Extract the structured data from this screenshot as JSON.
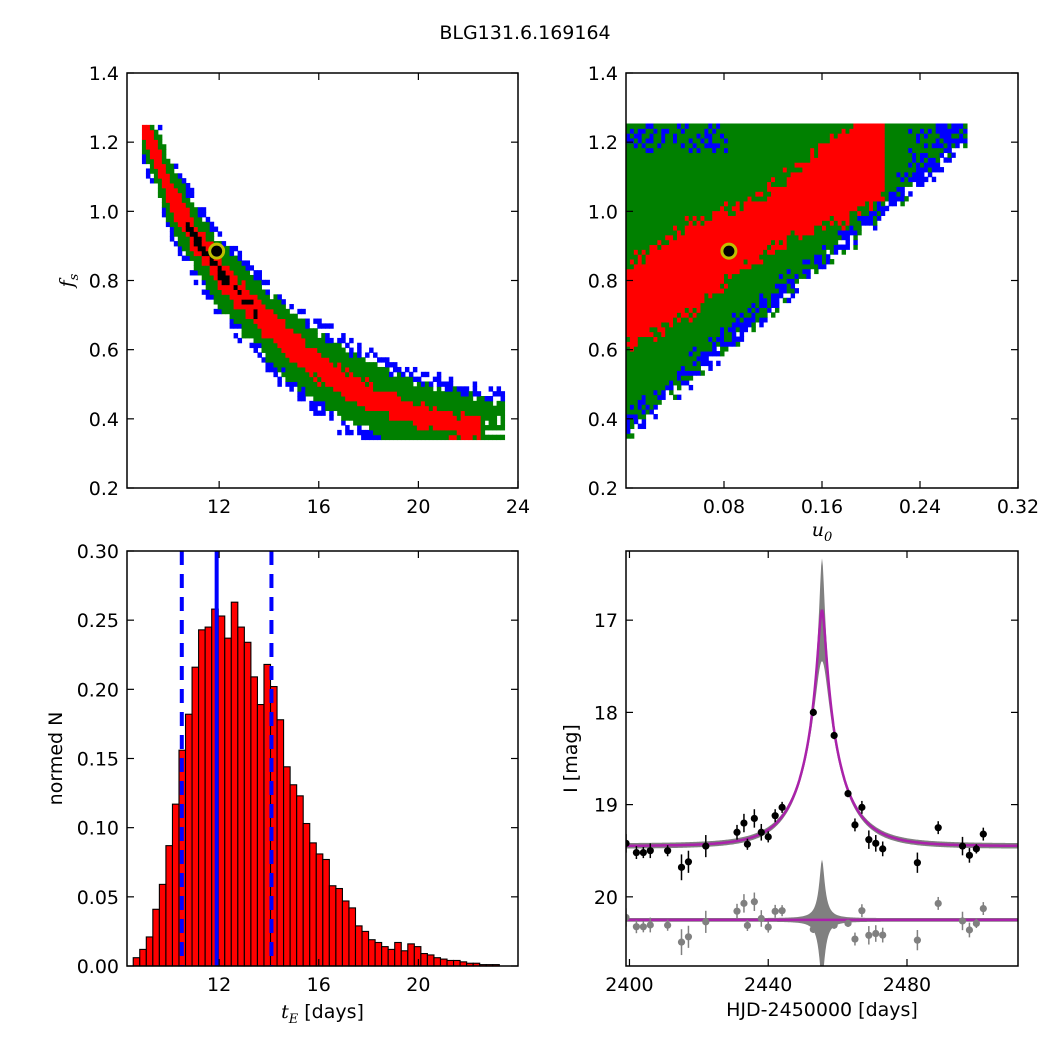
{
  "suptitle": "BLG131.6.169164",
  "colors": {
    "c68": "#ff0000",
    "c95": "#008000",
    "c997": "#0000ff",
    "c1": "#000000",
    "best_fill": "#000000",
    "best_ring": "#bfbf00",
    "model": "#aa22aa",
    "band": "#808080",
    "resid": "#808080",
    "hist": "#ff0000",
    "vline": "#0000ff"
  },
  "chart_data": [
    {
      "id": "fs_vs_tE",
      "type": "heatmap",
      "xlabel": "",
      "ylabel": "f_s",
      "xlim": [
        8.3,
        24
      ],
      "ylim": [
        0.2,
        1.4
      ],
      "xticks": [
        "12",
        "16",
        "20",
        "24"
      ],
      "yticks": [
        "0.2",
        "0.4",
        "0.6",
        "0.8",
        "1.0",
        "1.2",
        "1.4"
      ],
      "best_fit": [
        11.9,
        0.885
      ],
      "ridge": [
        [
          9.0,
          1.24
        ],
        [
          10.0,
          1.05
        ],
        [
          11.0,
          0.92
        ],
        [
          12.0,
          0.82
        ],
        [
          13.0,
          0.74
        ],
        [
          14.0,
          0.665
        ],
        [
          15.0,
          0.6
        ],
        [
          16.0,
          0.545
        ],
        [
          17.0,
          0.5
        ],
        [
          18.0,
          0.46
        ],
        [
          19.0,
          0.43
        ],
        [
          20.0,
          0.405
        ],
        [
          21.0,
          0.385
        ],
        [
          22.0,
          0.37
        ],
        [
          23.0,
          0.355
        ]
      ]
    },
    {
      "id": "fs_vs_u0",
      "type": "heatmap",
      "xlabel": "u_0",
      "ylabel": "",
      "xlim": [
        0.0,
        0.32
      ],
      "ylim": [
        0.2,
        1.4
      ],
      "xticks": [
        "0.08",
        "0.16",
        "0.24",
        "0.32"
      ],
      "yticks": [
        "0.2",
        "0.4",
        "0.6",
        "0.8",
        "1.0",
        "1.2",
        "1.4"
      ],
      "best_fit": [
        0.084,
        0.885
      ]
    },
    {
      "id": "tE_histogram",
      "type": "bar",
      "xlabel": "t_E  [days]",
      "ylabel": "normed N",
      "xlim": [
        8.3,
        24
      ],
      "ylim": [
        0.0,
        0.3
      ],
      "xticks": [
        "12",
        "16",
        "20"
      ],
      "yticks": [
        "0.00",
        "0.05",
        "0.10",
        "0.15",
        "0.20",
        "0.25",
        "0.30"
      ],
      "bin_start": 8.55,
      "bin_width": 0.2625,
      "values": [
        0.006,
        0.012,
        0.021,
        0.041,
        0.059,
        0.087,
        0.117,
        0.156,
        0.182,
        0.216,
        0.243,
        0.245,
        0.258,
        0.253,
        0.237,
        0.263,
        0.245,
        0.234,
        0.209,
        0.189,
        0.218,
        0.202,
        0.178,
        0.144,
        0.131,
        0.123,
        0.103,
        0.089,
        0.081,
        0.077,
        0.058,
        0.056,
        0.047,
        0.042,
        0.029,
        0.025,
        0.019,
        0.017,
        0.014,
        0.012,
        0.017,
        0.011,
        0.016,
        0.014,
        0.009,
        0.008,
        0.006,
        0.005,
        0.004,
        0.004,
        0.003,
        0.002,
        0.002,
        0.001,
        0.001,
        0.001
      ],
      "median": 11.9,
      "lower": 10.5,
      "upper": 14.1
    },
    {
      "id": "light_curve",
      "type": "scatter",
      "xlabel": "HJD-2450000 [days]",
      "ylabel": "I [mag]",
      "xlim": [
        2399,
        2512
      ],
      "ylim": [
        20.75,
        16.25
      ],
      "xticks": [
        "2400",
        "2440",
        "2480"
      ],
      "yticks": [
        "17",
        "18",
        "19",
        "20"
      ],
      "model": {
        "t0": 2455.5,
        "tE": 11.9,
        "u0": 0.084,
        "baseline": 19.45
      },
      "points": [
        [
          2399,
          19.42,
          0.1
        ],
        [
          2402,
          19.52,
          0.07
        ],
        [
          2404,
          19.52,
          0.06
        ],
        [
          2406,
          19.5,
          0.08
        ],
        [
          2411,
          19.5,
          0.06
        ],
        [
          2415,
          19.68,
          0.14
        ],
        [
          2417,
          19.62,
          0.12
        ],
        [
          2422,
          19.45,
          0.12
        ],
        [
          2431,
          19.3,
          0.08
        ],
        [
          2433,
          19.2,
          0.1
        ],
        [
          2434,
          19.43,
          0.06
        ],
        [
          2436,
          19.15,
          0.1
        ],
        [
          2438,
          19.3,
          0.09
        ],
        [
          2440,
          19.35,
          0.06
        ],
        [
          2442,
          19.12,
          0.07
        ],
        [
          2444,
          19.03,
          0.06
        ],
        [
          2453,
          18.0,
          0.04
        ],
        [
          2459,
          18.25,
          0.04
        ],
        [
          2463,
          18.88,
          0.04
        ],
        [
          2465,
          19.22,
          0.07
        ],
        [
          2467,
          19.03,
          0.07
        ],
        [
          2469,
          19.38,
          0.1
        ],
        [
          2471,
          19.42,
          0.09
        ],
        [
          2473,
          19.48,
          0.08
        ],
        [
          2483,
          19.63,
          0.11
        ],
        [
          2489,
          19.25,
          0.07
        ],
        [
          2496,
          19.45,
          0.1
        ],
        [
          2498,
          19.55,
          0.08
        ],
        [
          2500,
          19.48,
          0.05
        ],
        [
          2502,
          19.32,
          0.07
        ]
      ],
      "residual_offset": 20.25
    }
  ]
}
